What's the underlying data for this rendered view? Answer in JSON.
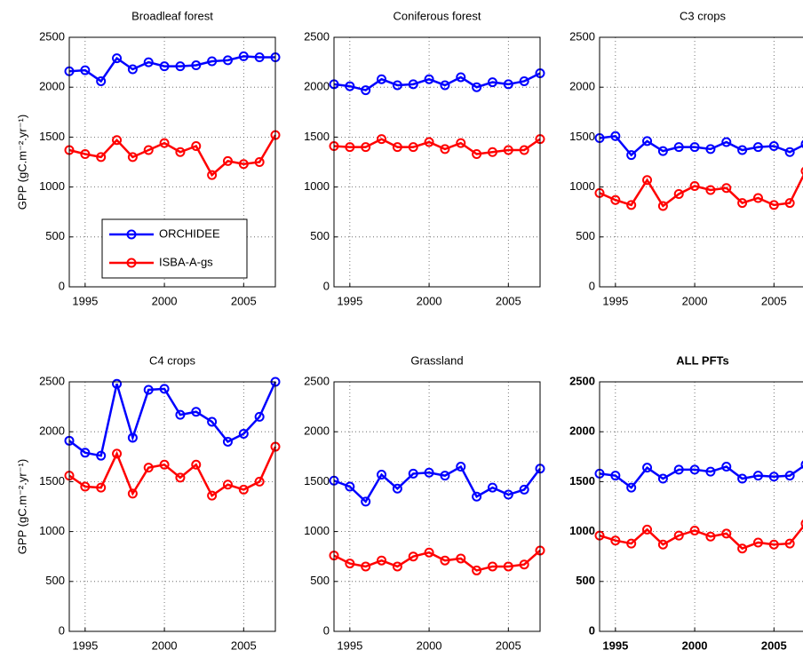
{
  "chart_data": [
    {
      "type": "line",
      "title": "Broadleaf forest",
      "ylabel": "GPP (gC.m⁻².yr⁻¹)",
      "x": [
        1994,
        1995,
        1996,
        1997,
        1998,
        1999,
        2000,
        2001,
        2002,
        2003,
        2004,
        2005,
        2006,
        2007
      ],
      "series": [
        {
          "name": "ORCHIDEE",
          "color": "#0000ff",
          "values": [
            2160,
            2170,
            2060,
            2290,
            2180,
            2250,
            2210,
            2210,
            2220,
            2260,
            2270,
            2310,
            2300,
            2300
          ]
        },
        {
          "name": "ISBA-A-gs",
          "color": "#ff0000",
          "values": [
            1370,
            1330,
            1300,
            1470,
            1300,
            1370,
            1440,
            1350,
            1410,
            1120,
            1260,
            1230,
            1250,
            1520
          ]
        }
      ],
      "xlim": [
        1994,
        2007
      ],
      "xticks": [
        1995,
        2000,
        2005
      ],
      "ylim": [
        0,
        2500
      ],
      "yticks": [
        0,
        500,
        1000,
        1500,
        2000,
        2500
      ],
      "grid": true,
      "legend": "lower left"
    },
    {
      "type": "line",
      "title": "Coniferous forest",
      "x": [
        1994,
        1995,
        1996,
        1997,
        1998,
        1999,
        2000,
        2001,
        2002,
        2003,
        2004,
        2005,
        2006,
        2007
      ],
      "series": [
        {
          "name": "ORCHIDEE",
          "color": "#0000ff",
          "values": [
            2030,
            2010,
            1970,
            2080,
            2020,
            2030,
            2080,
            2020,
            2100,
            2000,
            2050,
            2030,
            2060,
            2140
          ]
        },
        {
          "name": "ISBA-A-gs",
          "color": "#ff0000",
          "values": [
            1410,
            1400,
            1400,
            1480,
            1400,
            1400,
            1450,
            1380,
            1440,
            1330,
            1350,
            1370,
            1370,
            1480
          ]
        }
      ],
      "xlim": [
        1994,
        2007
      ],
      "xticks": [
        1995,
        2000,
        2005
      ],
      "ylim": [
        0,
        2500
      ],
      "yticks": [
        0,
        500,
        1000,
        1500,
        2000,
        2500
      ],
      "grid": true
    },
    {
      "type": "line",
      "title": "C3 crops",
      "x": [
        1994,
        1995,
        1996,
        1997,
        1998,
        1999,
        2000,
        2001,
        2002,
        2003,
        2004,
        2005,
        2006,
        2007
      ],
      "series": [
        {
          "name": "ORCHIDEE",
          "color": "#0000ff",
          "values": [
            1490,
            1510,
            1320,
            1460,
            1360,
            1400,
            1400,
            1380,
            1450,
            1370,
            1400,
            1410,
            1350,
            1430
          ]
        },
        {
          "name": "ISBA-A-gs",
          "color": "#ff0000",
          "values": [
            940,
            870,
            820,
            1070,
            810,
            930,
            1010,
            970,
            990,
            840,
            890,
            820,
            840,
            1160
          ]
        }
      ],
      "xlim": [
        1994,
        2007
      ],
      "xticks": [
        1995,
        2000,
        2005
      ],
      "ylim": [
        0,
        2500
      ],
      "yticks": [
        0,
        500,
        1000,
        1500,
        2000,
        2500
      ],
      "grid": true
    },
    {
      "type": "line",
      "title": "C4 crops",
      "ylabel": "GPP (gC.m⁻².yr⁻¹)",
      "x": [
        1994,
        1995,
        1996,
        1997,
        1998,
        1999,
        2000,
        2001,
        2002,
        2003,
        2004,
        2005,
        2006,
        2007
      ],
      "series": [
        {
          "name": "ORCHIDEE",
          "color": "#0000ff",
          "values": [
            1910,
            1790,
            1760,
            2480,
            1940,
            2420,
            2430,
            2170,
            2200,
            2100,
            1900,
            1980,
            2150,
            2500
          ]
        },
        {
          "name": "ISBA-A-gs",
          "color": "#ff0000",
          "values": [
            1560,
            1450,
            1440,
            1780,
            1380,
            1640,
            1670,
            1540,
            1670,
            1360,
            1470,
            1420,
            1500,
            1850
          ]
        }
      ],
      "xlim": [
        1994,
        2007
      ],
      "xticks": [
        1995,
        2000,
        2005
      ],
      "ylim": [
        0,
        2500
      ],
      "yticks": [
        0,
        500,
        1000,
        1500,
        2000,
        2500
      ],
      "grid": true
    },
    {
      "type": "line",
      "title": "Grassland",
      "x": [
        1994,
        1995,
        1996,
        1997,
        1998,
        1999,
        2000,
        2001,
        2002,
        2003,
        2004,
        2005,
        2006,
        2007
      ],
      "series": [
        {
          "name": "ORCHIDEE",
          "color": "#0000ff",
          "values": [
            1510,
            1450,
            1300,
            1570,
            1430,
            1580,
            1590,
            1560,
            1650,
            1350,
            1440,
            1370,
            1420,
            1630
          ]
        },
        {
          "name": "ISBA-A-gs",
          "color": "#ff0000",
          "values": [
            760,
            680,
            650,
            710,
            650,
            750,
            790,
            710,
            730,
            610,
            650,
            650,
            670,
            810
          ]
        }
      ],
      "xlim": [
        1994,
        2007
      ],
      "xticks": [
        1995,
        2000,
        2005
      ],
      "ylim": [
        0,
        2500
      ],
      "yticks": [
        0,
        500,
        1000,
        1500,
        2000,
        2500
      ],
      "grid": true
    },
    {
      "type": "line",
      "title": "ALL PFTs",
      "bold": true,
      "x": [
        1994,
        1995,
        1996,
        1997,
        1998,
        1999,
        2000,
        2001,
        2002,
        2003,
        2004,
        2005,
        2006,
        2007
      ],
      "series": [
        {
          "name": "ORCHIDEE",
          "color": "#0000ff",
          "values": [
            1580,
            1560,
            1440,
            1640,
            1530,
            1620,
            1620,
            1600,
            1650,
            1530,
            1560,
            1550,
            1560,
            1670
          ]
        },
        {
          "name": "ISBA-A-gs",
          "color": "#ff0000",
          "values": [
            960,
            910,
            880,
            1020,
            870,
            960,
            1010,
            950,
            980,
            830,
            890,
            870,
            880,
            1080
          ]
        }
      ],
      "xlim": [
        1994,
        2007
      ],
      "xticks": [
        1995,
        2000,
        2005
      ],
      "ylim": [
        0,
        2500
      ],
      "yticks": [
        0,
        500,
        1000,
        1500,
        2000,
        2500
      ],
      "grid": true
    }
  ]
}
